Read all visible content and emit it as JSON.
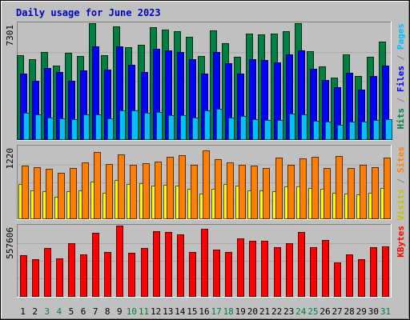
{
  "chart_data": {
    "type": "bar",
    "title": "Daily usage for June 2023",
    "categories": [
      "1",
      "2",
      "3",
      "4",
      "5",
      "6",
      "7",
      "8",
      "9",
      "10",
      "11",
      "12",
      "13",
      "14",
      "15",
      "16",
      "17",
      "18",
      "19",
      "20",
      "21",
      "22",
      "23",
      "24",
      "25",
      "26",
      "27",
      "28",
      "29",
      "30",
      "31"
    ],
    "weekend_days": [
      "3",
      "4",
      "10",
      "11",
      "17",
      "18",
      "24",
      "25",
      "31"
    ],
    "panels": [
      {
        "name": "hits",
        "max_label": "7301",
        "max": 7301,
        "right_labels": [
          {
            "text": "Hits",
            "color": "#008040"
          },
          {
            "text": " / ",
            "color": "#808080"
          },
          {
            "text": "Files",
            "color": "#0000ff"
          },
          {
            "text": " / ",
            "color": "#808080"
          },
          {
            "text": "Pages",
            "color": "#00c0ff"
          }
        ],
        "series": [
          {
            "name": "Hits",
            "color": "#008040",
            "values": [
              5300,
              5050,
              5500,
              4630,
              5460,
              5220,
              7290,
              5300,
              7100,
              5770,
              5920,
              7030,
              6920,
              6790,
              6450,
              5230,
              6860,
              6050,
              5200,
              6640,
              6600,
              6640,
              6800,
              7290,
              5520,
              4570,
              3900,
              5340,
              3960,
              5180,
              6150
            ]
          },
          {
            "name": "Files",
            "color": "#0000ff",
            "values": [
              4130,
              3680,
              4500,
              4220,
              3690,
              4320,
              5830,
              4380,
              5850,
              4670,
              4240,
              5670,
              5580,
              5470,
              5020,
              4140,
              5490,
              4800,
              4150,
              5010,
              4960,
              4830,
              5340,
              5580,
              4410,
              3740,
              3280,
              4160,
              3100,
              4000,
              4640
            ]
          },
          {
            "name": "Pages",
            "color": "#00c0ff",
            "values": [
              1640,
              1560,
              1380,
              1310,
              1280,
              1550,
              1540,
              1320,
              1800,
              1790,
              1680,
              1710,
              1530,
              1530,
              1360,
              1790,
              1910,
              1340,
              1460,
              1260,
              1220,
              1210,
              1590,
              1540,
              1160,
              1130,
              890,
              1100,
              1100,
              1230,
              1280
            ]
          }
        ]
      },
      {
        "name": "visits",
        "max_label": "1220",
        "max": 1220,
        "right_labels": [
          {
            "text": "Visits",
            "color": "#c0c000"
          },
          {
            "text": " / ",
            "color": "#808080"
          },
          {
            "text": "Sites",
            "color": "#ff8000"
          }
        ],
        "series": [
          {
            "name": "Visits",
            "color": "#ffff00",
            "values": [
              580,
              470,
              460,
              360,
              460,
              480,
              620,
              440,
              650,
              580,
              590,
              560,
              570,
              550,
              500,
              420,
              500,
              580,
              560,
              480,
              480,
              460,
              540,
              540,
              510,
              500,
              440,
              420,
              400,
              430,
              520
            ]
          },
          {
            "name": "Sites",
            "color": "#ff8000",
            "values": [
              890,
              870,
              840,
              770,
              860,
              950,
              1130,
              920,
              1080,
              910,
              930,
              960,
              1050,
              1070,
              910,
              1150,
              1000,
              950,
              910,
              890,
              850,
              1030,
              910,
              1020,
              1050,
              860,
              1060,
              850,
              910,
              870,
              1030
            ]
          }
        ]
      },
      {
        "name": "kbytes",
        "max_label": "557606",
        "max": 557606,
        "right_labels": [
          {
            "text": "KBytes",
            "color": "#ff0000"
          }
        ],
        "series": [
          {
            "name": "KBytes",
            "color": "#ff0000",
            "values": [
              320000,
              290000,
              380000,
              300000,
              420000,
              330000,
              500000,
              350000,
              560000,
              340000,
              380000,
              515000,
              510000,
              490000,
              350000,
              530000,
              365000,
              350000,
              455000,
              440000,
              435000,
              385000,
              420000,
              505000,
              385000,
              445000,
              265000,
              330000,
              290000,
              385000,
              390000
            ]
          }
        ]
      }
    ]
  }
}
